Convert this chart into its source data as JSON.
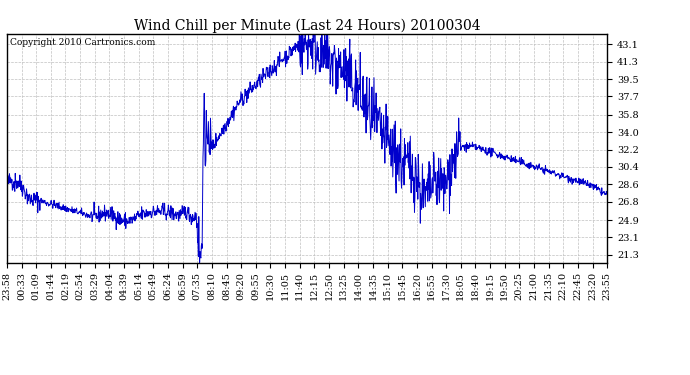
{
  "title": "Wind Chill per Minute (Last 24 Hours) 20100304",
  "copyright_text": "Copyright 2010 Cartronics.com",
  "y_ticks": [
    21.3,
    23.1,
    24.9,
    26.8,
    28.6,
    30.4,
    32.2,
    34.0,
    35.8,
    37.7,
    39.5,
    41.3,
    43.1
  ],
  "ylim": [
    20.5,
    44.2
  ],
  "x_labels": [
    "23:58",
    "00:33",
    "01:09",
    "01:44",
    "02:19",
    "02:54",
    "03:29",
    "04:04",
    "04:39",
    "05:14",
    "05:49",
    "06:24",
    "06:59",
    "07:35",
    "08:10",
    "08:45",
    "09:20",
    "09:55",
    "10:30",
    "11:05",
    "11:40",
    "12:15",
    "12:50",
    "13:25",
    "14:00",
    "14:35",
    "15:10",
    "15:45",
    "16:20",
    "16:55",
    "17:30",
    "18:05",
    "18:40",
    "19:15",
    "19:50",
    "20:25",
    "21:00",
    "21:35",
    "22:10",
    "22:45",
    "23:20",
    "23:55"
  ],
  "line_color": "#0000CC",
  "background_color": "#ffffff",
  "grid_color": "#c0c0c0",
  "title_fontsize": 10,
  "copyright_fontsize": 6.5,
  "tick_fontsize": 7
}
